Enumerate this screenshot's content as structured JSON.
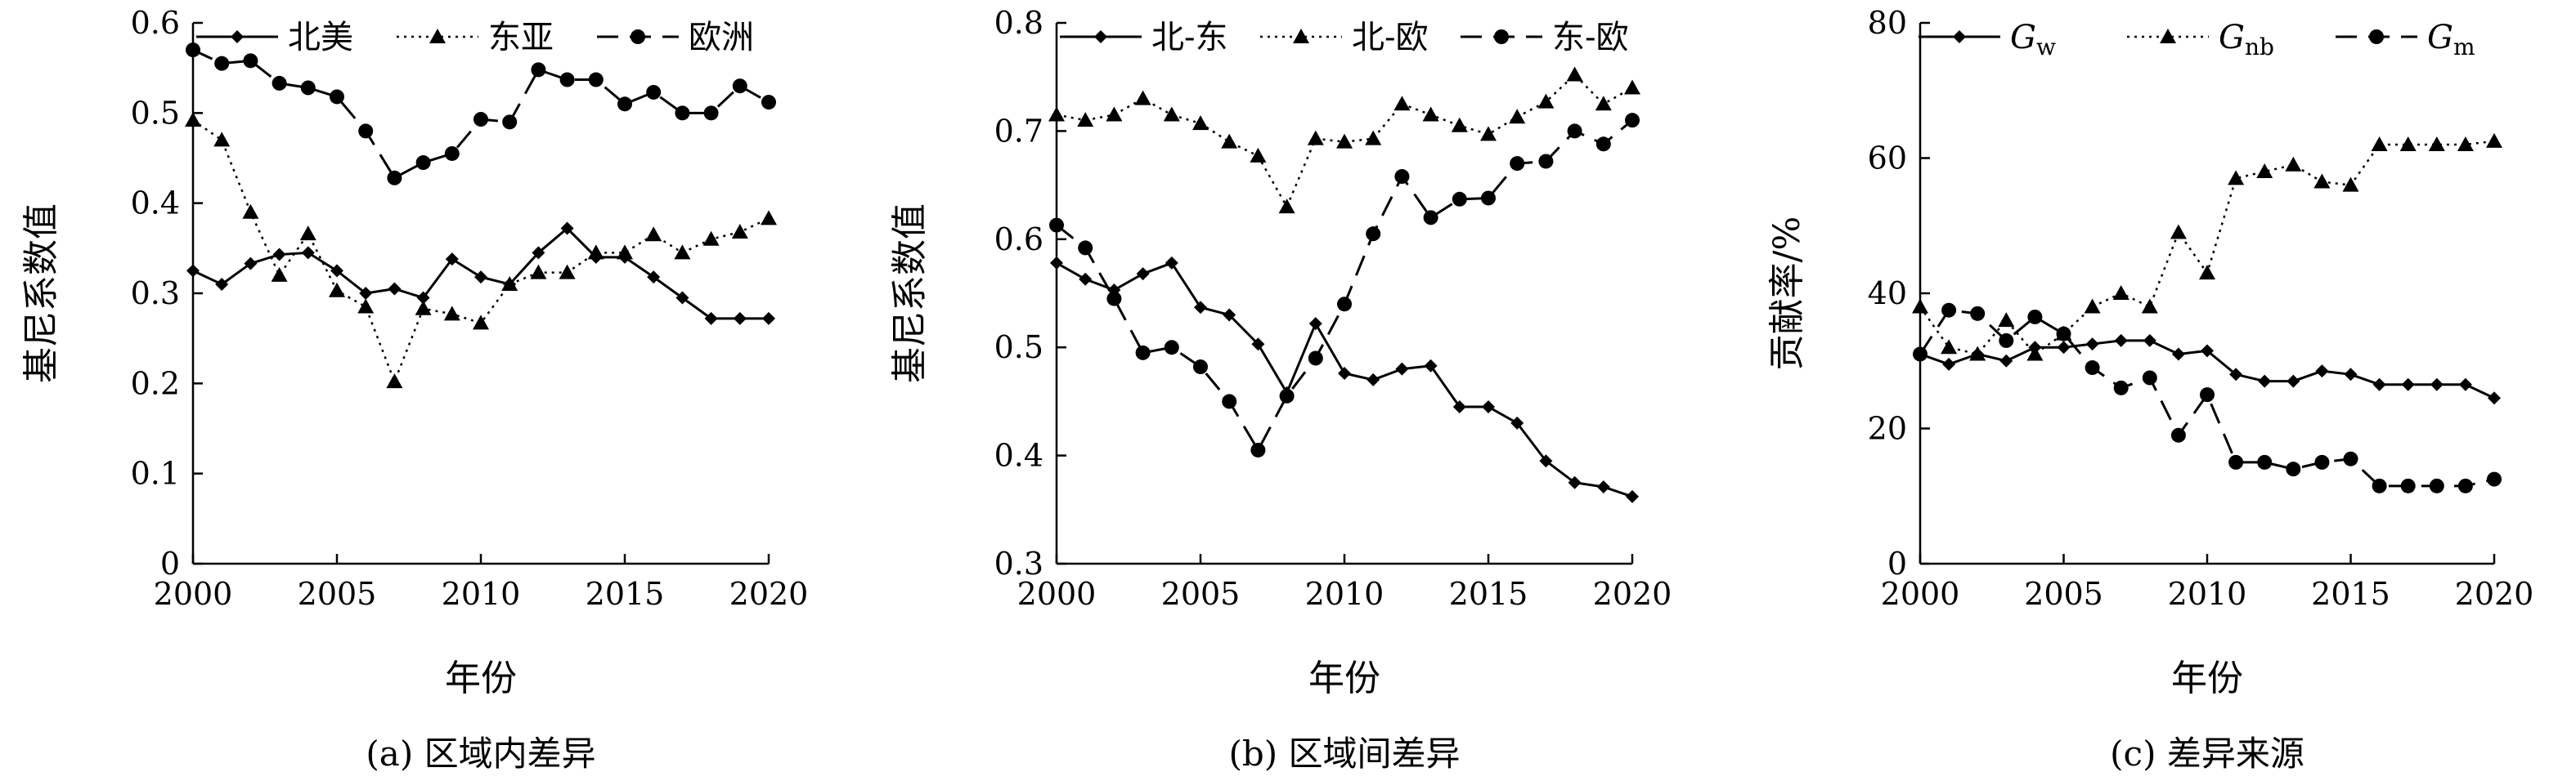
{
  "chart_data": [
    {
      "type": "line",
      "title": "(a) 区域内差异",
      "xlabel": "年份",
      "ylabel": "基尼系数值",
      "xlim": [
        2000,
        2020
      ],
      "ylim": [
        0,
        0.6
      ],
      "x_ticks": [
        "2000",
        "2005",
        "2010",
        "2015",
        "2020"
      ],
      "y_ticks": [
        "0",
        "0.1",
        "0.2",
        "0.3",
        "0.4",
        "0.5",
        "0.6"
      ],
      "legend_position": "top",
      "x": [
        2000,
        2001,
        2002,
        2003,
        2004,
        2005,
        2006,
        2007,
        2008,
        2009,
        2010,
        2011,
        2012,
        2013,
        2014,
        2015,
        2016,
        2017,
        2018,
        2019,
        2020
      ],
      "series": [
        {
          "name": "北美",
          "line": "solid",
          "marker": "diamond",
          "values": [
            0.325,
            0.31,
            0.333,
            0.343,
            0.345,
            0.325,
            0.3,
            0.305,
            0.295,
            0.338,
            0.318,
            0.31,
            0.345,
            0.372,
            0.34,
            0.34,
            0.318,
            0.295,
            0.272,
            0.272,
            0.272
          ]
        },
        {
          "name": "东亚",
          "line": "dotted",
          "marker": "triangle",
          "values": [
            0.492,
            0.47,
            0.39,
            0.32,
            0.366,
            0.303,
            0.285,
            0.202,
            0.283,
            0.277,
            0.267,
            0.31,
            0.323,
            0.323,
            0.345,
            0.345,
            0.365,
            0.345,
            0.36,
            0.368,
            0.383
          ]
        },
        {
          "name": "欧洲",
          "line": "dashed",
          "marker": "circle",
          "values": [
            0.57,
            0.555,
            0.558,
            0.533,
            0.528,
            0.518,
            0.48,
            0.428,
            0.445,
            0.455,
            0.493,
            0.49,
            0.548,
            0.537,
            0.537,
            0.51,
            0.523,
            0.5,
            0.5,
            0.53,
            0.512
          ]
        }
      ]
    },
    {
      "type": "line",
      "title": "(b) 区域间差异",
      "xlabel": "年份",
      "ylabel": "基尼系数值",
      "xlim": [
        2000,
        2020
      ],
      "ylim": [
        0.3,
        0.8
      ],
      "x_ticks": [
        "2000",
        "2005",
        "2010",
        "2015",
        "2020"
      ],
      "y_ticks": [
        "0.3",
        "0.4",
        "0.5",
        "0.6",
        "0.7",
        "0.8"
      ],
      "legend_position": "top",
      "x": [
        2000,
        2001,
        2002,
        2003,
        2004,
        2005,
        2006,
        2007,
        2008,
        2009,
        2010,
        2011,
        2012,
        2013,
        2014,
        2015,
        2016,
        2017,
        2018,
        2019,
        2020
      ],
      "series": [
        {
          "name": "北-东",
          "line": "solid",
          "marker": "diamond",
          "values": [
            0.578,
            0.563,
            0.553,
            0.568,
            0.578,
            0.537,
            0.53,
            0.503,
            0.458,
            0.522,
            0.476,
            0.47,
            0.48,
            0.483,
            0.445,
            0.445,
            0.43,
            0.395,
            0.375,
            0.371,
            0.362
          ]
        },
        {
          "name": "北-欧",
          "line": "dotted",
          "marker": "triangle",
          "values": [
            0.715,
            0.71,
            0.715,
            0.73,
            0.715,
            0.707,
            0.69,
            0.677,
            0.63,
            0.693,
            0.69,
            0.693,
            0.725,
            0.715,
            0.705,
            0.697,
            0.713,
            0.727,
            0.752,
            0.725,
            0.74
          ]
        },
        {
          "name": "东-欧",
          "line": "dashed",
          "marker": "circle",
          "values": [
            0.613,
            0.592,
            0.545,
            0.495,
            0.5,
            0.482,
            0.45,
            0.405,
            0.455,
            0.49,
            0.54,
            0.605,
            0.658,
            0.62,
            0.637,
            0.638,
            0.67,
            0.672,
            0.7,
            0.688,
            0.71
          ]
        }
      ]
    },
    {
      "type": "line",
      "title": "(c) 差异来源",
      "xlabel": "年份",
      "ylabel": "贡献率/%",
      "xlim": [
        2000,
        2020
      ],
      "ylim": [
        0,
        80
      ],
      "x_ticks": [
        "2000",
        "2005",
        "2010",
        "2015",
        "2020"
      ],
      "y_ticks": [
        "0",
        "20",
        "40",
        "60",
        "80"
      ],
      "legend_position": "top",
      "x": [
        2000,
        2001,
        2002,
        2003,
        2004,
        2005,
        2006,
        2007,
        2008,
        2009,
        2010,
        2011,
        2012,
        2013,
        2014,
        2015,
        2016,
        2017,
        2018,
        2019,
        2020
      ],
      "series": [
        {
          "name": "Gw",
          "name_main": "G",
          "name_sub": "w",
          "line": "solid",
          "marker": "diamond",
          "values": [
            31,
            29.5,
            31,
            30,
            32,
            32,
            32.5,
            33,
            33,
            31,
            31.5,
            28,
            27,
            27,
            28.5,
            28,
            26.5,
            26.5,
            26.5,
            26.5,
            24.5
          ]
        },
        {
          "name": "Gnb",
          "name_main": "G",
          "name_sub": "nb",
          "line": "dotted",
          "marker": "triangle",
          "values": [
            38,
            32,
            31,
            36,
            31,
            34,
            38,
            40,
            38,
            49,
            43,
            57,
            58,
            59,
            56.5,
            56,
            62,
            62,
            62,
            62,
            62.5
          ]
        },
        {
          "name": "Gm",
          "name_main": "G",
          "name_sub": "m",
          "line": "dashed",
          "marker": "circle",
          "values": [
            31,
            37.5,
            37,
            33,
            36.5,
            34,
            29,
            26,
            27.5,
            19,
            25,
            15,
            15,
            14,
            15,
            15.5,
            11.5,
            11.5,
            11.5,
            11.5,
            12.5
          ]
        }
      ]
    }
  ]
}
